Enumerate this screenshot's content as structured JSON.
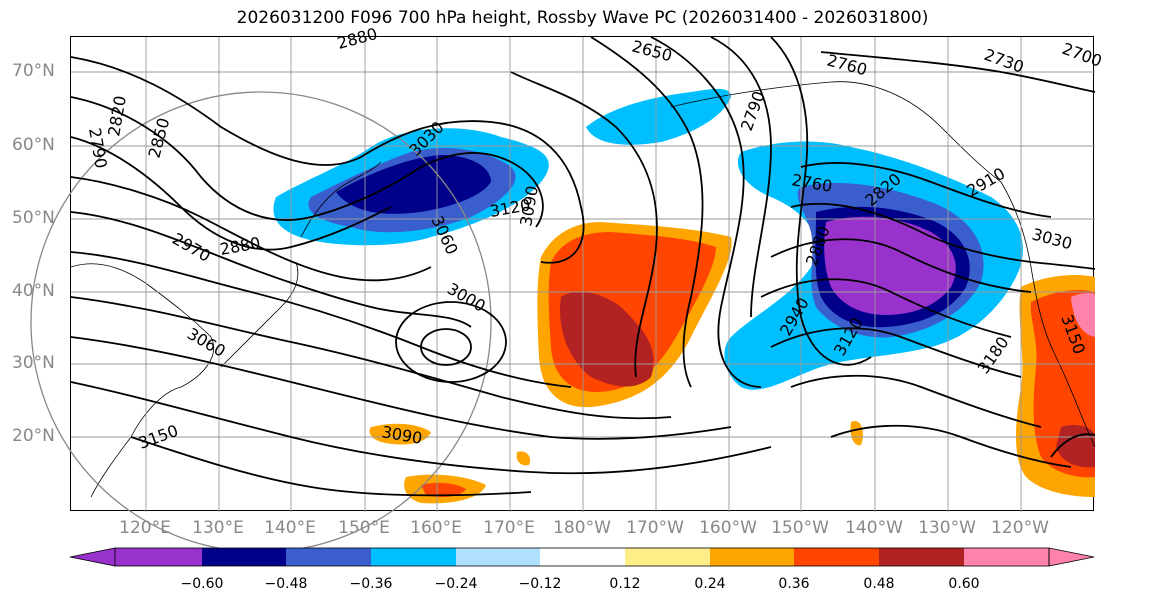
{
  "title": "2026031200 F096 700 hPa height, Rossby Wave PC (2026031400 - 2026031800)",
  "lat_labels": [
    "70°N",
    "60°N",
    "50°N",
    "40°N",
    "30°N",
    "20°N"
  ],
  "lon_labels": [
    "120°E",
    "130°E",
    "140°E",
    "150°E",
    "160°E",
    "170°E",
    "180°W",
    "170°W",
    "160°W",
    "150°W",
    "140°W",
    "130°W",
    "120°W"
  ],
  "contour_labels": [
    "2790",
    "2820",
    "2850",
    "2880",
    "2650",
    "3030",
    "3060",
    "3120",
    "3090",
    "3000",
    "2970",
    "2880",
    "3060",
    "3150",
    "3090",
    "2790",
    "2760",
    "2760",
    "2730",
    "2700",
    "2820",
    "2880",
    "2940",
    "3120",
    "3180",
    "3030",
    "3150",
    "2910"
  ],
  "colorbar": {
    "ticks": [
      "−0.60",
      "−0.48",
      "−0.36",
      "−0.24",
      "−0.12",
      "0.12",
      "0.24",
      "0.36",
      "0.48",
      "0.60"
    ],
    "colors": [
      "#9932cc",
      "#00008b",
      "#3a5fcd",
      "#00bfff",
      "#b0e2ff",
      "#ffffff",
      "#ffee88",
      "#ffa500",
      "#ff4500",
      "#b22222",
      "#ff82ab"
    ]
  },
  "colors": {
    "frame": "#000000",
    "grid": "#9a9a9a",
    "axis_text": "#888888"
  }
}
